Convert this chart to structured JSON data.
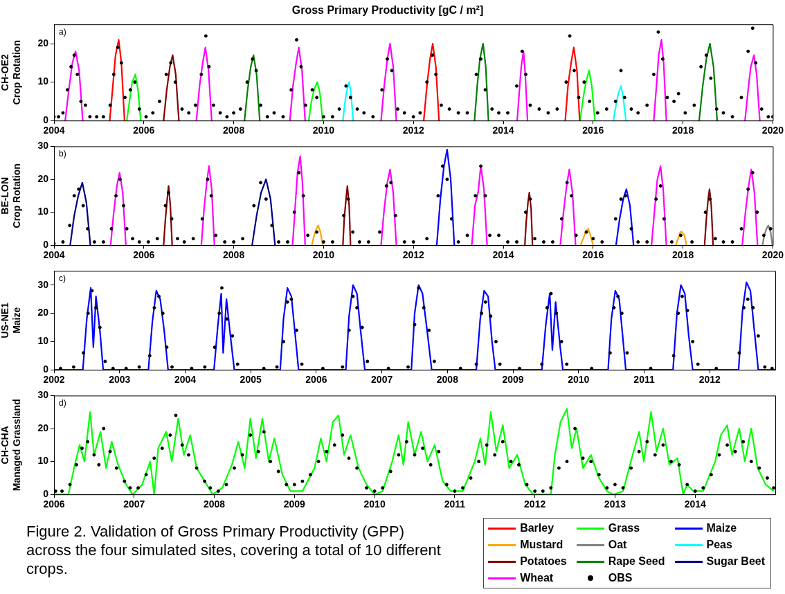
{
  "chart_data": [
    {
      "type": "line",
      "title": "Gross Primary Productivity [gC / m²]",
      "ylabel": "CH-OE2\nCrop Rotation",
      "annotations": [
        "a)"
      ],
      "xlim": [
        2004,
        2020
      ],
      "xticks": [
        2004,
        2006,
        2008,
        2010,
        2012,
        2014,
        2016,
        2018,
        2020
      ],
      "ylim": [
        0,
        25
      ],
      "yticks": [
        0,
        10,
        20
      ],
      "grid": false,
      "legend": false,
      "series": [
        {
          "name": "Barley",
          "color": "#ff0000",
          "x": [
            2005.24,
            2005.31,
            2005.37,
            2005.44,
            2005.5,
            2005.57,
            2005.58,
            2012.23,
            2012.3,
            2012.37,
            2012.43,
            2012.5,
            2012.57,
            2012.58,
            2015.38,
            2015.44,
            2015.51,
            2015.57,
            2015.64,
            2015.7
          ],
          "values": [
            0,
            9,
            17,
            21,
            15,
            0,
            null,
            0,
            9,
            16,
            20,
            14,
            0,
            null,
            0,
            9,
            15,
            19,
            13,
            0
          ]
        },
        {
          "color": "#00ff00",
          "x": [
            2005.62,
            2005.68,
            2005.74,
            2005.81,
            2005.87,
            2005.93,
            2005.94,
            2009.67,
            2009.73,
            2009.79,
            2009.86,
            2009.92,
            2009.98,
            2009.99,
            2015.71,
            2015.78,
            2015.84,
            2015.91,
            2015.97,
            2016.04
          ],
          "values": [
            0,
            5,
            10,
            12,
            8,
            0,
            null,
            0,
            5,
            8,
            10,
            7,
            0,
            null,
            0,
            6,
            10,
            13,
            9,
            0
          ]
        },
        {
          "name": "Peas",
          "color": "#00ffff",
          "x": [
            2010.43,
            2010.48,
            2010.52,
            2010.57,
            2010.61,
            2010.66,
            2010.67,
            2016.45,
            2016.51,
            2016.56,
            2016.62,
            2016.67,
            2016.73
          ],
          "values": [
            0,
            5,
            8,
            10,
            7,
            0,
            null,
            0,
            4,
            7,
            9,
            6,
            0
          ]
        },
        {
          "name": "Potatoes",
          "color": "#800000",
          "x": [
            2006.44,
            2006.51,
            2006.58,
            2006.64,
            2006.71,
            2006.78
          ],
          "values": [
            0,
            8,
            14,
            17,
            12,
            0
          ]
        },
        {
          "name": "Rape Seed",
          "color": "#008000",
          "x": [
            2008.24,
            2008.31,
            2008.38,
            2008.44,
            2008.51,
            2008.58,
            2008.59,
            2013.36,
            2013.42,
            2013.48,
            2013.55,
            2013.61,
            2013.67,
            2013.68,
            2018.36,
            2018.44,
            2018.52,
            2018.6,
            2018.68,
            2018.76
          ],
          "values": [
            0,
            8,
            14,
            17,
            12,
            0,
            null,
            0,
            9,
            16,
            20,
            14,
            0,
            null,
            0,
            9,
            16,
            20,
            14,
            0
          ]
        },
        {
          "name": "Wheat",
          "color": "#ff00ff",
          "x": [
            2004.25,
            2004.33,
            2004.41,
            2004.48,
            2004.56,
            2004.64,
            2004.65,
            2007.17,
            2007.24,
            2007.31,
            2007.37,
            2007.44,
            2007.51,
            2007.52,
            2009.25,
            2009.32,
            2009.39,
            2009.45,
            2009.52,
            2009.59,
            2009.6,
            2011.28,
            2011.35,
            2011.42,
            2011.48,
            2011.55,
            2011.62,
            2011.63,
            2014.31,
            2014.36,
            2014.4,
            2014.45,
            2014.49,
            2014.54,
            2014.55,
            2017.35,
            2017.41,
            2017.46,
            2017.52,
            2017.57,
            2017.63,
            2017.64,
            2019.38,
            2019.45,
            2019.51,
            2019.58,
            2019.64,
            2019.71
          ],
          "values": [
            0,
            8,
            15,
            18,
            13,
            0,
            null,
            0,
            9,
            15,
            19,
            13,
            0,
            null,
            0,
            9,
            15,
            19,
            13,
            0,
            null,
            0,
            9,
            16,
            20,
            14,
            0,
            null,
            0,
            8,
            14,
            18,
            12,
            0,
            null,
            0,
            9,
            17,
            21,
            15,
            0,
            null,
            0,
            8,
            14,
            17,
            12,
            0
          ]
        },
        {
          "type": "scatter",
          "marker": "circle",
          "color": "#000000",
          "x": [
            2004.0,
            2004.1,
            2004.2,
            2004.3,
            2004.38,
            2004.45,
            2004.52,
            2004.6,
            2004.7,
            2004.8,
            2004.95,
            2005.1,
            2005.25,
            2005.33,
            2005.42,
            2005.5,
            2005.58,
            2005.7,
            2005.8,
            2005.9,
            2006.05,
            2006.2,
            2006.35,
            2006.5,
            2006.6,
            2006.7,
            2006.85,
            2007.0,
            2007.15,
            2007.28,
            2007.38,
            2007.45,
            2007.55,
            2007.7,
            2007.85,
            2008.0,
            2008.15,
            2008.3,
            2008.42,
            2008.5,
            2008.6,
            2008.75,
            2008.9,
            2009.1,
            2009.28,
            2009.4,
            2009.5,
            2009.6,
            2009.75,
            2009.85,
            2010.0,
            2010.2,
            2010.35,
            2010.5,
            2010.6,
            2010.75,
            2010.9,
            2011.1,
            2011.3,
            2011.42,
            2011.52,
            2011.65,
            2011.8,
            2012.0,
            2012.15,
            2012.3,
            2012.42,
            2012.5,
            2012.62,
            2012.8,
            2013.0,
            2013.2,
            2013.4,
            2013.5,
            2013.6,
            2013.75,
            2013.9,
            2014.1,
            2014.3,
            2014.42,
            2014.5,
            2014.6,
            2014.8,
            2015.0,
            2015.2,
            2015.4,
            2015.48,
            2015.58,
            2015.68,
            2015.8,
            2015.92,
            2016.1,
            2016.3,
            2016.5,
            2016.62,
            2016.7,
            2016.85,
            2017.0,
            2017.2,
            2017.35,
            2017.45,
            2017.55,
            2017.65,
            2017.8,
            2017.9,
            2018.05,
            2018.25,
            2018.4,
            2018.52,
            2018.62,
            2018.75,
            2018.9,
            2019.1,
            2019.3,
            2019.45,
            2019.55,
            2019.62,
            2019.75,
            2019.9,
            2020.0
          ],
          "values": [
            1,
            1,
            2,
            8,
            14,
            17,
            12,
            5,
            4,
            1,
            1,
            1,
            4,
            12,
            19,
            15,
            6,
            8,
            10,
            3,
            1,
            2,
            5,
            12,
            15,
            10,
            3,
            2,
            4,
            12,
            22,
            14,
            4,
            2,
            1,
            2,
            3,
            10,
            16,
            13,
            4,
            1,
            2,
            1,
            8,
            21,
            14,
            4,
            8,
            6,
            1,
            1,
            3,
            9,
            6,
            3,
            2,
            1,
            8,
            16,
            13,
            3,
            2,
            1,
            2,
            10,
            17,
            12,
            4,
            3,
            2,
            2,
            12,
            16,
            8,
            3,
            2,
            2,
            9,
            18,
            12,
            4,
            3,
            2,
            3,
            10,
            22,
            13,
            6,
            10,
            5,
            2,
            3,
            5,
            13,
            6,
            3,
            2,
            4,
            12,
            23,
            16,
            6,
            5,
            7,
            2,
            4,
            14,
            17,
            11,
            3,
            2,
            1,
            6,
            18,
            24,
            15,
            3,
            1,
            1
          ]
        }
      ]
    },
    {
      "type": "line",
      "ylabel": "BE-LON\nCrop Rotation",
      "annotations": [
        "b)"
      ],
      "xlim": [
        2004,
        2020
      ],
      "xticks": [
        2004,
        2006,
        2008,
        2010,
        2012,
        2014,
        2016,
        2018,
        2020
      ],
      "ylim": [
        0,
        30
      ],
      "yticks": [
        0,
        10,
        20,
        30
      ],
      "grid": false,
      "legend": false,
      "series": [
        {
          "name": "Maize",
          "color": "#0000ff",
          "x": [
            2012.52,
            2012.6,
            2012.68,
            2012.75,
            2012.83,
            2012.91,
            2012.92,
            2016.51,
            2016.59,
            2016.67,
            2016.74,
            2016.82,
            2016.9
          ],
          "values": [
            0,
            14,
            24,
            29,
            20,
            0,
            null,
            0,
            8,
            14,
            17,
            12,
            0
          ]
        },
        {
          "name": "Mustard",
          "color": "#ffa500",
          "x": [
            2009.74,
            2009.79,
            2009.84,
            2009.88,
            2009.93,
            2009.98,
            2009.99,
            2015.72,
            2015.78,
            2015.83,
            2015.89,
            2015.94,
            2016.0,
            2016.01,
            2017.84,
            2017.89,
            2017.94,
            2017.98,
            2018.03,
            2018.08
          ],
          "values": [
            0,
            3,
            5,
            6,
            4,
            0,
            null,
            0,
            2,
            4,
            5,
            3,
            0,
            null,
            0,
            2,
            4,
            4,
            3,
            0
          ]
        },
        {
          "name": "Oat",
          "color": "#808080",
          "x": [
            2019.77,
            2019.81,
            2019.86,
            2019.9,
            2019.95,
            2019.99
          ],
          "values": [
            0,
            3,
            5,
            6,
            4,
            0
          ]
        },
        {
          "color": "#800000",
          "x": [
            2006.44,
            2006.48,
            2006.52,
            2006.55,
            2006.59,
            2006.63,
            2006.64,
            2010.43,
            2010.46,
            2010.5,
            2010.53,
            2010.57,
            2010.6,
            2010.61,
            2014.48,
            2014.51,
            2014.55,
            2014.58,
            2014.62,
            2014.65,
            2014.66,
            2018.48,
            2018.52,
            2018.56,
            2018.59,
            2018.63,
            2018.67
          ],
          "values": [
            0,
            8,
            14,
            18,
            12,
            0,
            null,
            0,
            8,
            14,
            18,
            12,
            0,
            null,
            0,
            7,
            13,
            16,
            11,
            0,
            null,
            0,
            8,
            14,
            17,
            12,
            0
          ]
        },
        {
          "name": "Sugar Beet",
          "color": "#000080",
          "x": [
            2004.36,
            2004.45,
            2004.54,
            2004.63,
            2004.72,
            2004.81,
            2004.82,
            2008.41,
            2008.51,
            2008.61,
            2008.72,
            2008.82,
            2008.92
          ],
          "values": [
            0,
            9,
            15,
            19,
            13,
            0,
            null,
            0,
            9,
            16,
            20,
            14,
            0
          ]
        },
        {
          "color": "#ff00ff",
          "x": [
            2005.26,
            2005.33,
            2005.4,
            2005.46,
            2005.53,
            2005.6,
            2005.61,
            2007.28,
            2007.34,
            2007.4,
            2007.45,
            2007.51,
            2007.57,
            2007.58,
            2009.31,
            2009.37,
            2009.42,
            2009.48,
            2009.53,
            2009.59,
            2009.6,
            2011.28,
            2011.35,
            2011.42,
            2011.48,
            2011.55,
            2011.62,
            2011.63,
            2013.3,
            2013.37,
            2013.44,
            2013.5,
            2013.57,
            2013.64,
            2013.65,
            2015.27,
            2015.34,
            2015.41,
            2015.47,
            2015.54,
            2015.61,
            2015.62,
            2017.3,
            2017.37,
            2017.43,
            2017.5,
            2017.56,
            2017.63,
            2017.64,
            2019.32,
            2019.39,
            2019.46,
            2019.52,
            2019.59,
            2019.66
          ],
          "values": [
            0,
            10,
            18,
            22,
            16,
            0,
            null,
            0,
            11,
            19,
            24,
            17,
            0,
            null,
            0,
            12,
            22,
            27,
            19,
            0,
            null,
            0,
            11,
            19,
            23,
            16,
            0,
            null,
            0,
            12,
            16,
            24,
            17,
            0,
            null,
            0,
            10,
            18,
            23,
            16,
            0,
            null,
            0,
            11,
            20,
            24,
            17,
            0,
            null,
            0,
            10,
            18,
            23,
            16,
            0
          ]
        },
        {
          "type": "scatter",
          "marker": "circle",
          "color": "#000000",
          "x": [
            2004.0,
            2004.2,
            2004.35,
            2004.45,
            2004.55,
            2004.65,
            2004.75,
            2004.9,
            2005.1,
            2005.28,
            2005.38,
            2005.47,
            2005.55,
            2005.62,
            2005.75,
            2005.9,
            2006.1,
            2006.3,
            2006.48,
            2006.55,
            2006.62,
            2006.75,
            2006.9,
            2007.1,
            2007.3,
            2007.42,
            2007.5,
            2007.6,
            2007.8,
            2008.0,
            2008.2,
            2008.45,
            2008.6,
            2008.72,
            2008.85,
            2009.0,
            2009.2,
            2009.35,
            2009.45,
            2009.55,
            2009.65,
            2009.85,
            2010.0,
            2010.2,
            2010.45,
            2010.55,
            2010.65,
            2010.8,
            2011.0,
            2011.25,
            2011.4,
            2011.5,
            2011.6,
            2011.8,
            2012.0,
            2012.3,
            2012.55,
            2012.65,
            2012.75,
            2012.85,
            2013.0,
            2013.2,
            2013.38,
            2013.5,
            2013.6,
            2013.7,
            2013.9,
            2014.1,
            2014.3,
            2014.5,
            2014.6,
            2014.7,
            2014.9,
            2015.1,
            2015.3,
            2015.42,
            2015.52,
            2015.62,
            2015.85,
            2016.0,
            2016.2,
            2016.5,
            2016.62,
            2016.72,
            2016.85,
            2017.0,
            2017.2,
            2017.4,
            2017.5,
            2017.58,
            2017.75,
            2017.95,
            2018.2,
            2018.5,
            2018.6,
            2018.72,
            2018.9,
            2019.1,
            2019.3,
            2019.45,
            2019.55,
            2019.65,
            2019.8,
            2019.95
          ],
          "values": [
            0.5,
            1,
            6,
            15,
            17,
            12,
            5,
            1,
            1,
            5,
            15,
            20,
            12,
            5,
            2,
            1,
            1,
            2,
            12,
            16,
            8,
            2,
            1,
            2,
            8,
            20,
            15,
            3,
            1,
            1,
            2,
            12,
            19,
            14,
            6,
            1,
            1,
            10,
            22,
            15,
            3,
            4,
            1,
            1,
            9,
            14,
            4,
            1,
            1,
            4,
            18,
            19,
            9,
            1,
            1,
            2,
            15,
            24,
            20,
            8,
            1,
            3,
            15,
            24,
            15,
            3,
            3,
            1,
            1,
            10,
            14,
            2,
            1,
            1,
            8,
            19,
            15,
            3,
            4,
            2,
            1,
            8,
            14,
            15,
            5,
            1,
            1,
            14,
            18,
            8,
            1,
            3,
            1,
            10,
            14,
            2,
            1,
            1,
            5,
            17,
            22,
            10,
            3,
            5
          ]
        }
      ]
    },
    {
      "type": "line",
      "ylabel": "US-NE1\nMaize",
      "annotations": [
        "c)"
      ],
      "xlim": [
        2002,
        2013
      ],
      "xticks": [
        2002,
        2003,
        2004,
        2005,
        2006,
        2007,
        2008,
        2009,
        2010,
        2011,
        2012
      ],
      "ylim": [
        0,
        35
      ],
      "yticks": [
        0,
        10,
        20,
        30
      ],
      "grid": false,
      "legend": false,
      "series": [
        {
          "color": "#0000ff",
          "x": [
            2002,
            2002.44,
            2002.5,
            2002.56,
            2002.6,
            2002.64,
            2002.7,
            2002.75,
            2003.44,
            2003.5,
            2003.56,
            2003.62,
            2003.68,
            2003.74,
            2004.44,
            2004.5,
            2004.55,
            2004.58,
            2004.63,
            2004.7,
            2004.75,
            2005.45,
            2005.5,
            2005.56,
            2005.62,
            2005.68,
            2005.73,
            2006.45,
            2006.5,
            2006.56,
            2006.62,
            2006.68,
            2006.74,
            2007.45,
            2007.5,
            2007.56,
            2007.62,
            2007.7,
            2007.76,
            2008.44,
            2008.5,
            2008.56,
            2008.62,
            2008.68,
            2008.73,
            2009.44,
            2009.5,
            2009.56,
            2009.6,
            2009.65,
            2009.72,
            2009.76,
            2010.45,
            2010.5,
            2010.56,
            2010.62,
            2010.68,
            2010.72,
            2011.44,
            2011.5,
            2011.56,
            2011.62,
            2011.68,
            2011.74,
            2012.44,
            2012.5,
            2012.56,
            2012.62,
            2012.68,
            2012.74,
            2013
          ],
          "values": [
            0,
            0,
            18,
            29,
            8,
            26,
            14,
            0,
            0,
            17,
            28,
            25,
            14,
            0,
            0,
            16,
            27,
            6,
            25,
            10,
            0,
            0,
            18,
            29,
            26,
            12,
            0,
            0,
            19,
            30,
            27,
            13,
            0,
            0,
            20,
            30,
            27,
            12,
            0,
            0,
            18,
            28,
            26,
            10,
            0,
            0,
            16,
            27,
            7,
            24,
            8,
            0,
            0,
            18,
            28,
            25,
            10,
            0,
            0,
            20,
            30,
            27,
            12,
            0,
            0,
            21,
            31,
            28,
            14,
            0,
            0
          ]
        },
        {
          "type": "scatter",
          "marker": "circle",
          "color": "#000000",
          "x": [
            2002.1,
            2002.3,
            2002.45,
            2002.52,
            2002.58,
            2002.64,
            2002.7,
            2002.78,
            2002.9,
            2003.1,
            2003.3,
            2003.46,
            2003.53,
            2003.6,
            2003.66,
            2003.72,
            2003.8,
            2004.1,
            2004.3,
            2004.45,
            2004.52,
            2004.56,
            2004.64,
            2004.72,
            2004.8,
            2005.2,
            2005.4,
            2005.5,
            2005.56,
            2005.62,
            2005.7,
            2005.78,
            2006.1,
            2006.4,
            2006.5,
            2006.56,
            2006.62,
            2006.7,
            2006.78,
            2007.1,
            2007.4,
            2007.5,
            2007.56,
            2007.64,
            2007.72,
            2007.8,
            2008.2,
            2008.44,
            2008.52,
            2008.58,
            2008.66,
            2008.74,
            2008.8,
            2009.1,
            2009.44,
            2009.52,
            2009.58,
            2009.66,
            2009.74,
            2009.82,
            2010.2,
            2010.48,
            2010.54,
            2010.6,
            2010.66,
            2010.74,
            2011.1,
            2011.45,
            2011.52,
            2011.58,
            2011.66,
            2011.74,
            2011.82,
            2012.1,
            2012.45,
            2012.52,
            2012.58,
            2012.66,
            2012.74,
            2012.84,
            2012.95
          ],
          "values": [
            0.5,
            1,
            6,
            20,
            28,
            22,
            15,
            3,
            0.5,
            0.5,
            1,
            5,
            22,
            26,
            20,
            8,
            1,
            0.5,
            1,
            8,
            20,
            29,
            18,
            12,
            2,
            0.5,
            1,
            10,
            24,
            25,
            14,
            2,
            0.5,
            1,
            14,
            26,
            22,
            15,
            3,
            0.5,
            1,
            16,
            29,
            22,
            14,
            3,
            0.5,
            2,
            20,
            24,
            19,
            10,
            2,
            0.5,
            2,
            22,
            27,
            20,
            10,
            2,
            0.5,
            6,
            22,
            26,
            20,
            6,
            0.5,
            5,
            20,
            26,
            21,
            10,
            2,
            0.5,
            6,
            22,
            25,
            22,
            12,
            1,
            0.5
          ]
        }
      ]
    },
    {
      "type": "line",
      "ylabel": "CH-CHA\nManaged Grassland",
      "annotations": [
        "d)",
        "Figure 2. Validation of Gross Primary Productivity (GPP) across the four simulated sites, covering a total of 10 different crops."
      ],
      "xlim": [
        2006,
        2015
      ],
      "xticks": [
        2006,
        2007,
        2008,
        2009,
        2010,
        2011,
        2012,
        2013,
        2014
      ],
      "ylim": [
        0,
        30
      ],
      "yticks": [
        0,
        10,
        20,
        30
      ],
      "grid": false,
      "legend": "bottom right",
      "series": [
        {
          "name": "Grass",
          "color": "#00ff00",
          "x": [
            2006.0,
            2006.18,
            2006.25,
            2006.32,
            2006.38,
            2006.45,
            2006.5,
            2006.58,
            2006.65,
            2006.72,
            2006.8,
            2006.9,
            2006.98,
            2007.1,
            2007.2,
            2007.25,
            2007.3,
            2007.4,
            2007.47,
            2007.55,
            2007.62,
            2007.7,
            2007.78,
            2007.88,
            2007.98,
            2008.1,
            2008.22,
            2008.3,
            2008.38,
            2008.45,
            2008.52,
            2008.6,
            2008.68,
            2008.75,
            2008.85,
            2008.95,
            2009.1,
            2009.25,
            2009.33,
            2009.4,
            2009.48,
            2009.55,
            2009.62,
            2009.7,
            2009.8,
            2009.9,
            2010.0,
            2010.1,
            2010.22,
            2010.3,
            2010.36,
            2010.42,
            2010.5,
            2010.58,
            2010.66,
            2010.75,
            2010.85,
            2010.95,
            2011.1,
            2011.25,
            2011.32,
            2011.38,
            2011.45,
            2011.52,
            2011.6,
            2011.68,
            2011.78,
            2011.88,
            2011.98,
            2012.1,
            2012.2,
            2012.25,
            2012.32,
            2012.4,
            2012.46,
            2012.52,
            2012.6,
            2012.7,
            2012.8,
            2012.9,
            2012.98,
            2013.1,
            2013.22,
            2013.3,
            2013.36,
            2013.45,
            2013.52,
            2013.6,
            2013.68,
            2013.78,
            2013.85,
            2013.9,
            2013.98,
            2014.1,
            2014.25,
            2014.32,
            2014.4,
            2014.46,
            2014.55,
            2014.62,
            2014.7,
            2014.78,
            2014.88,
            2014.98
          ],
          "values": [
            0,
            0,
            8,
            15,
            10,
            25,
            12,
            19,
            8,
            16,
            9,
            3,
            0,
            3,
            10,
            0,
            14,
            19,
            10,
            23,
            12,
            18,
            8,
            4,
            0,
            2,
            9,
            16,
            8,
            23,
            11,
            23,
            10,
            17,
            6,
            1,
            1,
            8,
            17,
            10,
            22,
            24,
            12,
            18,
            8,
            3,
            0,
            1,
            10,
            18,
            9,
            22,
            12,
            19,
            10,
            15,
            4,
            1,
            1,
            10,
            17,
            9,
            25,
            13,
            21,
            8,
            12,
            3,
            0,
            0,
            0,
            12,
            22,
            26,
            14,
            20,
            8,
            12,
            5,
            1,
            0,
            1,
            12,
            19,
            10,
            25,
            13,
            20,
            9,
            11,
            0,
            3,
            1,
            1,
            10,
            18,
            21,
            12,
            20,
            10,
            20,
            8,
            3,
            1
          ]
        },
        {
          "name": "OBS",
          "type": "scatter",
          "marker": "circle",
          "color": "#000000",
          "x": [
            2006.02,
            2006.1,
            2006.2,
            2006.28,
            2006.35,
            2006.42,
            2006.5,
            2006.56,
            2006.62,
            2006.7,
            2006.78,
            2006.88,
            2006.95,
            2007.05,
            2007.15,
            2007.25,
            2007.35,
            2007.45,
            2007.52,
            2007.6,
            2007.68,
            2007.78,
            2007.88,
            2007.95,
            2008.05,
            2008.15,
            2008.25,
            2008.35,
            2008.45,
            2008.55,
            2008.62,
            2008.7,
            2008.8,
            2008.9,
            2009.0,
            2009.1,
            2009.2,
            2009.3,
            2009.4,
            2009.5,
            2009.6,
            2009.68,
            2009.78,
            2009.9,
            2010.0,
            2010.1,
            2010.2,
            2010.3,
            2010.4,
            2010.5,
            2010.6,
            2010.7,
            2010.8,
            2010.9,
            2011.0,
            2011.1,
            2011.2,
            2011.3,
            2011.4,
            2011.5,
            2011.6,
            2011.7,
            2011.8,
            2011.9,
            2012.0,
            2012.1,
            2012.2,
            2012.3,
            2012.4,
            2012.5,
            2012.6,
            2012.7,
            2012.8,
            2012.9,
            2013.0,
            2013.1,
            2013.2,
            2013.3,
            2013.4,
            2013.5,
            2013.6,
            2013.7,
            2013.8,
            2013.9,
            2014.0,
            2014.1,
            2014.2,
            2014.3,
            2014.4,
            2014.5,
            2014.6,
            2014.7,
            2014.8,
            2014.9,
            2014.98
          ],
          "values": [
            1,
            1,
            3,
            9,
            14,
            16,
            12,
            9,
            20,
            13,
            8,
            4,
            2,
            2,
            6,
            11,
            14,
            18,
            24,
            15,
            12,
            8,
            4,
            2,
            1,
            3,
            8,
            12,
            18,
            13,
            19,
            10,
            7,
            3,
            3,
            4,
            6,
            10,
            13,
            15,
            18,
            11,
            8,
            2,
            1,
            2,
            7,
            12,
            16,
            12,
            14,
            9,
            13,
            3,
            1,
            2,
            5,
            10,
            15,
            12,
            16,
            10,
            9,
            3,
            1,
            1,
            2,
            8,
            10,
            20,
            11,
            10,
            6,
            2,
            3,
            2,
            8,
            13,
            16,
            12,
            15,
            10,
            9,
            3,
            1,
            2,
            6,
            12,
            15,
            13,
            16,
            10,
            8,
            5,
            2
          ]
        }
      ]
    }
  ]
}
